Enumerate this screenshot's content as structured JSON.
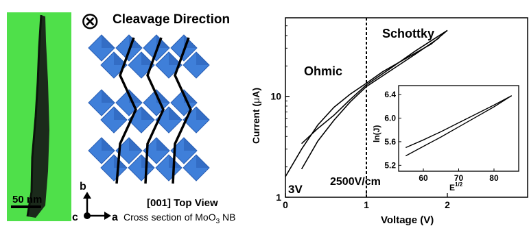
{
  "panel_a": {
    "scalebar_label": "50 nm",
    "colors": {
      "background": "#4fe04a",
      "nanobelt": "#1b2a1b"
    }
  },
  "panel_b": {
    "cleavage_symbol": "⊗",
    "cleavage_label": "Cleavage Direction",
    "axis_b": "b",
    "axis_c": "c",
    "axis_a": "a",
    "view_label": "[001] Top View",
    "cross_section_prefix": "Cross section of MoO",
    "cross_section_sub": "3",
    "cross_section_suffix": " NB",
    "colors": {
      "octahedron": "#3f7fd9",
      "octahedron_dark": "#2a5fb4",
      "cleavage_line": "#000000"
    }
  },
  "chart_data": [
    {
      "type": "line",
      "title": "",
      "xlabel": "Voltage (V)",
      "ylabel_prefix": "Current (",
      "ylabel_mu": "μ",
      "ylabel_suffix": "A)",
      "xlim": [
        0,
        2.0
      ],
      "ylim": [
        1,
        60
      ],
      "yscale": "log",
      "xticks": [
        "0",
        "1",
        "2"
      ],
      "yticks": [
        "1",
        "10"
      ],
      "annotations": {
        "ohmic": "Ohmic",
        "schottky": "Schottky",
        "voltage": "3V",
        "field": "2500V/cm"
      },
      "divider_x": 1.0,
      "series": [
        {
          "x": [
            0.0,
            0.2,
            0.4,
            0.6,
            0.8,
            1.0,
            1.2,
            1.5,
            1.8,
            2.0
          ],
          "y": [
            1.6,
            3.0,
            5.2,
            7.8,
            10.5,
            13.5,
            17.5,
            24,
            33,
            45
          ]
        },
        {
          "x": [
            0.2,
            0.4,
            0.6,
            0.8,
            1.0,
            1.3,
            1.6,
            1.9,
            2.0
          ],
          "y": [
            3.4,
            4.8,
            6.5,
            9.3,
            13.0,
            19,
            28,
            40,
            45
          ]
        },
        {
          "x": [
            0.2,
            0.4,
            0.6,
            0.8,
            1.0,
            1.3,
            1.6,
            1.9
          ],
          "y": [
            1.9,
            3.6,
            5.8,
            8.8,
            12.5,
            18,
            26,
            38
          ]
        }
      ]
    },
    {
      "type": "line",
      "title": "",
      "xlabel_base": "E",
      "xlabel_sup": "1/2",
      "ylabel": "ln(J)",
      "xlim": [
        53,
        87
      ],
      "ylim": [
        5.1,
        6.55
      ],
      "xticks": [
        "60",
        "70",
        "80"
      ],
      "yticks": [
        "5.2",
        "5.6",
        "6.0",
        "6.4"
      ],
      "series": [
        {
          "x": [
            55,
            60,
            65,
            70,
            75,
            80,
            85
          ],
          "y": [
            5.36,
            5.52,
            5.68,
            5.85,
            6.02,
            6.19,
            6.38
          ]
        },
        {
          "x": [
            55,
            60,
            65,
            70,
            75,
            80,
            85
          ],
          "y": [
            5.5,
            5.63,
            5.77,
            5.92,
            6.07,
            6.22,
            6.38
          ]
        }
      ]
    }
  ]
}
